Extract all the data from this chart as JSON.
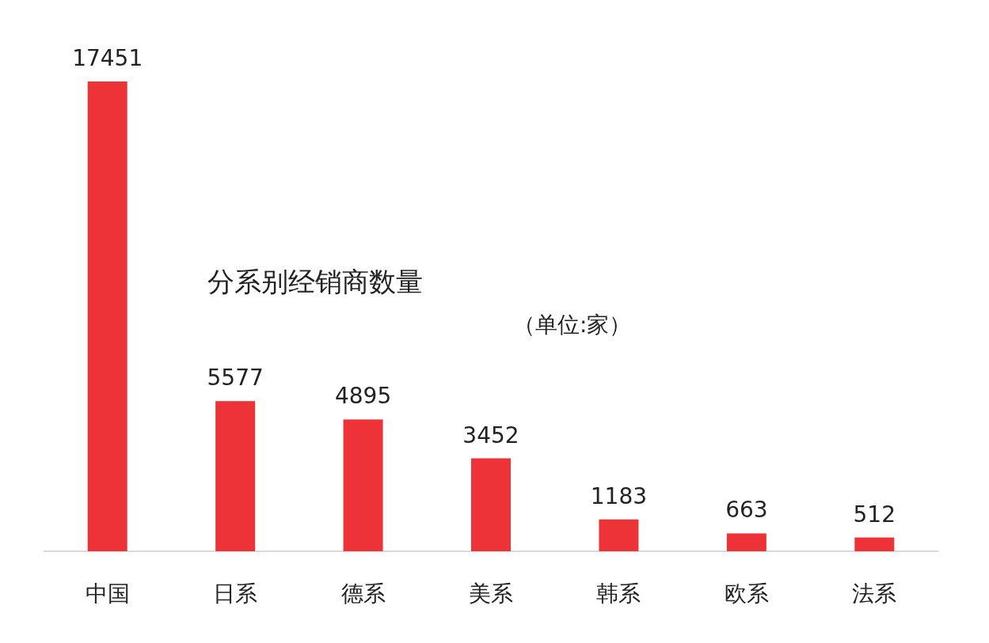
{
  "chart_data": {
    "type": "bar",
    "title": "分系别经销商数量",
    "subtitle": "（单位:家）",
    "categories": [
      "中国",
      "日系",
      "德系",
      "美系",
      "韩系",
      "欧系",
      "法系"
    ],
    "values": [
      17451,
      5577,
      4895,
      3452,
      1183,
      663,
      512
    ],
    "color": "#ee3338",
    "data_labels": true
  }
}
